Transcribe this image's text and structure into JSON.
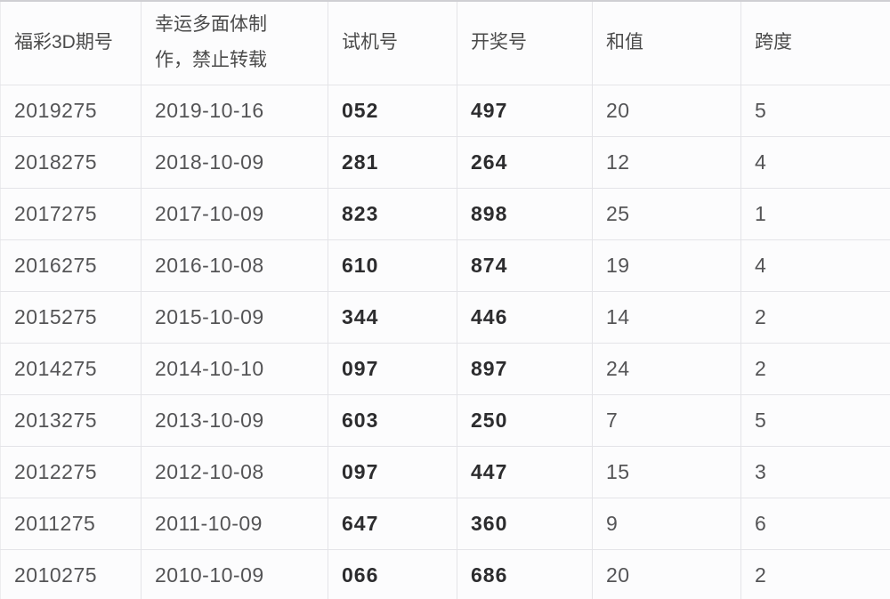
{
  "chart_data": {
    "type": "table",
    "columns": [
      "福彩3D期号",
      "幸运多面体制作，禁止转载",
      "试机号",
      "开奖号",
      "和值",
      "跨度"
    ],
    "column_keys": [
      "issue",
      "date",
      "test-number",
      "winning-number",
      "sum",
      "span"
    ],
    "emphasis_columns": [
      2,
      3
    ],
    "rows": [
      [
        "2019275",
        "2019-10-16",
        "052",
        "497",
        "20",
        "5"
      ],
      [
        "2018275",
        "2018-10-09",
        "281",
        "264",
        "12",
        "4"
      ],
      [
        "2017275",
        "2017-10-09",
        "823",
        "898",
        "25",
        "1"
      ],
      [
        "2016275",
        "2016-10-08",
        "610",
        "874",
        "19",
        "4"
      ],
      [
        "2015275",
        "2015-10-09",
        "344",
        "446",
        "14",
        "2"
      ],
      [
        "2014275",
        "2014-10-10",
        "097",
        "897",
        "24",
        "2"
      ],
      [
        "2013275",
        "2013-10-09",
        "603",
        "250",
        "7",
        "5"
      ],
      [
        "2012275",
        "2012-10-08",
        "097",
        "447",
        "15",
        "3"
      ],
      [
        "2011275",
        "2011-10-09",
        "647",
        "360",
        "9",
        "6"
      ],
      [
        "2010275",
        "2010-10-09",
        "066",
        "686",
        "20",
        "2"
      ]
    ],
    "colors": {
      "cell_background": "#fcfcfd",
      "grid_border": "#e4e4e8",
      "top_border": "#cfcfd3",
      "header_text": "#4b4b4b",
      "body_text": "#545456",
      "emphasis_text": "#2c2c2e"
    },
    "layout_hints": {
      "grid": true,
      "header_row": true,
      "last_row_clipped": true
    }
  }
}
